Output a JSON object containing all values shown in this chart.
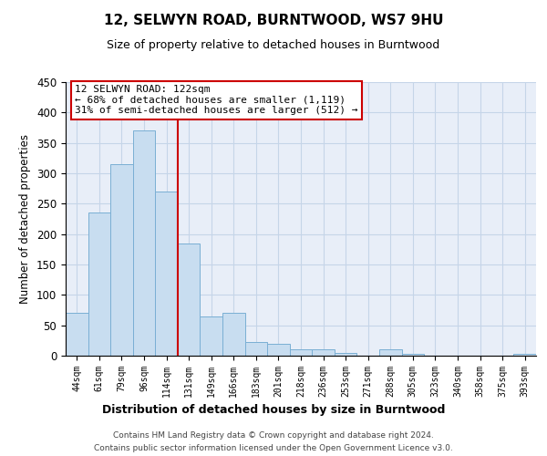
{
  "title": "12, SELWYN ROAD, BURNTWOOD, WS7 9HU",
  "subtitle": "Size of property relative to detached houses in Burntwood",
  "xlabel": "Distribution of detached houses by size in Burntwood",
  "ylabel": "Number of detached properties",
  "bin_labels": [
    "44sqm",
    "61sqm",
    "79sqm",
    "96sqm",
    "114sqm",
    "131sqm",
    "149sqm",
    "166sqm",
    "183sqm",
    "201sqm",
    "218sqm",
    "236sqm",
    "253sqm",
    "271sqm",
    "288sqm",
    "305sqm",
    "323sqm",
    "340sqm",
    "358sqm",
    "375sqm",
    "393sqm"
  ],
  "bar_values": [
    70,
    235,
    315,
    370,
    270,
    185,
    65,
    70,
    22,
    20,
    10,
    10,
    5,
    0,
    10,
    3,
    0,
    0,
    0,
    0,
    3
  ],
  "bar_color": "#c8ddf0",
  "bar_edge_color": "#7aafd4",
  "vline_color": "#cc0000",
  "annotation_title": "12 SELWYN ROAD: 122sqm",
  "annotation_line1": "← 68% of detached houses are smaller (1,119)",
  "annotation_line2": "31% of semi-detached houses are larger (512) →",
  "annotation_box_facecolor": "#ffffff",
  "annotation_box_edgecolor": "#cc0000",
  "bg_color": "#e8eef8",
  "grid_color": "#c5d5e8",
  "ylim": [
    0,
    450
  ],
  "footer_line1": "Contains HM Land Registry data © Crown copyright and database right 2024.",
  "footer_line2": "Contains public sector information licensed under the Open Government Licence v3.0."
}
